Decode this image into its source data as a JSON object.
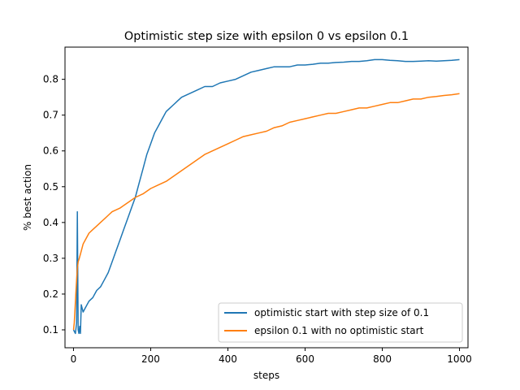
{
  "chart_data": {
    "type": "line",
    "title": "Optimistic step size with epsilon 0 vs epsilon 0.1",
    "xlabel": "steps",
    "ylabel": "% best action",
    "xlim": [
      -22,
      1022
    ],
    "ylim": [
      0.05,
      0.89
    ],
    "xticks": [
      0,
      200,
      400,
      600,
      800,
      1000
    ],
    "yticks": [
      0.1,
      0.2,
      0.3,
      0.4,
      0.5,
      0.6,
      0.7,
      0.8
    ],
    "grid": false,
    "legend_position": "lower-right",
    "series": [
      {
        "name": "optimistic start with step size of 0.1",
        "color": "#1f77b4",
        "points": [
          [
            0,
            0.1
          ],
          [
            5,
            0.09
          ],
          [
            8,
            0.12
          ],
          [
            10,
            0.43
          ],
          [
            12,
            0.1
          ],
          [
            14,
            0.09
          ],
          [
            16,
            0.11
          ],
          [
            18,
            0.09
          ],
          [
            20,
            0.17
          ],
          [
            25,
            0.15
          ],
          [
            30,
            0.16
          ],
          [
            40,
            0.18
          ],
          [
            50,
            0.19
          ],
          [
            60,
            0.21
          ],
          [
            70,
            0.22
          ],
          [
            80,
            0.24
          ],
          [
            90,
            0.26
          ],
          [
            100,
            0.29
          ],
          [
            110,
            0.32
          ],
          [
            120,
            0.35
          ],
          [
            130,
            0.38
          ],
          [
            140,
            0.41
          ],
          [
            150,
            0.44
          ],
          [
            160,
            0.47
          ],
          [
            170,
            0.51
          ],
          [
            180,
            0.55
          ],
          [
            190,
            0.59
          ],
          [
            200,
            0.62
          ],
          [
            210,
            0.65
          ],
          [
            220,
            0.67
          ],
          [
            230,
            0.69
          ],
          [
            240,
            0.71
          ],
          [
            250,
            0.72
          ],
          [
            260,
            0.73
          ],
          [
            270,
            0.74
          ],
          [
            280,
            0.75
          ],
          [
            300,
            0.76
          ],
          [
            320,
            0.77
          ],
          [
            340,
            0.78
          ],
          [
            360,
            0.78
          ],
          [
            380,
            0.79
          ],
          [
            400,
            0.795
          ],
          [
            420,
            0.8
          ],
          [
            440,
            0.81
          ],
          [
            460,
            0.82
          ],
          [
            480,
            0.825
          ],
          [
            500,
            0.83
          ],
          [
            520,
            0.835
          ],
          [
            540,
            0.835
          ],
          [
            560,
            0.835
          ],
          [
            580,
            0.84
          ],
          [
            600,
            0.84
          ],
          [
            620,
            0.842
          ],
          [
            640,
            0.845
          ],
          [
            660,
            0.845
          ],
          [
            680,
            0.847
          ],
          [
            700,
            0.848
          ],
          [
            720,
            0.85
          ],
          [
            740,
            0.85
          ],
          [
            760,
            0.852
          ],
          [
            780,
            0.855
          ],
          [
            800,
            0.855
          ],
          [
            820,
            0.853
          ],
          [
            840,
            0.852
          ],
          [
            860,
            0.85
          ],
          [
            880,
            0.85
          ],
          [
            900,
            0.851
          ],
          [
            920,
            0.852
          ],
          [
            940,
            0.851
          ],
          [
            960,
            0.852
          ],
          [
            980,
            0.853
          ],
          [
            1000,
            0.855
          ]
        ]
      },
      {
        "name": "epsilon 0.1 with no optimistic start",
        "color": "#ff7f0e",
        "points": [
          [
            0,
            0.1
          ],
          [
            2,
            0.12
          ],
          [
            4,
            0.16
          ],
          [
            6,
            0.2
          ],
          [
            8,
            0.24
          ],
          [
            10,
            0.27
          ],
          [
            12,
            0.29
          ],
          [
            15,
            0.3
          ],
          [
            20,
            0.32
          ],
          [
            25,
            0.34
          ],
          [
            30,
            0.35
          ],
          [
            40,
            0.37
          ],
          [
            50,
            0.38
          ],
          [
            60,
            0.39
          ],
          [
            70,
            0.4
          ],
          [
            80,
            0.41
          ],
          [
            90,
            0.42
          ],
          [
            100,
            0.43
          ],
          [
            120,
            0.44
          ],
          [
            140,
            0.455
          ],
          [
            160,
            0.47
          ],
          [
            180,
            0.48
          ],
          [
            200,
            0.495
          ],
          [
            220,
            0.505
          ],
          [
            240,
            0.515
          ],
          [
            260,
            0.53
          ],
          [
            280,
            0.545
          ],
          [
            300,
            0.56
          ],
          [
            320,
            0.575
          ],
          [
            340,
            0.59
          ],
          [
            360,
            0.6
          ],
          [
            380,
            0.61
          ],
          [
            400,
            0.62
          ],
          [
            420,
            0.63
          ],
          [
            440,
            0.64
          ],
          [
            460,
            0.645
          ],
          [
            480,
            0.65
          ],
          [
            500,
            0.655
          ],
          [
            520,
            0.665
          ],
          [
            540,
            0.67
          ],
          [
            560,
            0.68
          ],
          [
            580,
            0.685
          ],
          [
            600,
            0.69
          ],
          [
            620,
            0.695
          ],
          [
            640,
            0.7
          ],
          [
            660,
            0.705
          ],
          [
            680,
            0.705
          ],
          [
            700,
            0.71
          ],
          [
            720,
            0.715
          ],
          [
            740,
            0.72
          ],
          [
            760,
            0.72
          ],
          [
            780,
            0.725
          ],
          [
            800,
            0.73
          ],
          [
            820,
            0.735
          ],
          [
            840,
            0.735
          ],
          [
            860,
            0.74
          ],
          [
            880,
            0.745
          ],
          [
            900,
            0.745
          ],
          [
            920,
            0.75
          ],
          [
            940,
            0.752
          ],
          [
            960,
            0.755
          ],
          [
            980,
            0.757
          ],
          [
            1000,
            0.76
          ]
        ]
      }
    ]
  }
}
